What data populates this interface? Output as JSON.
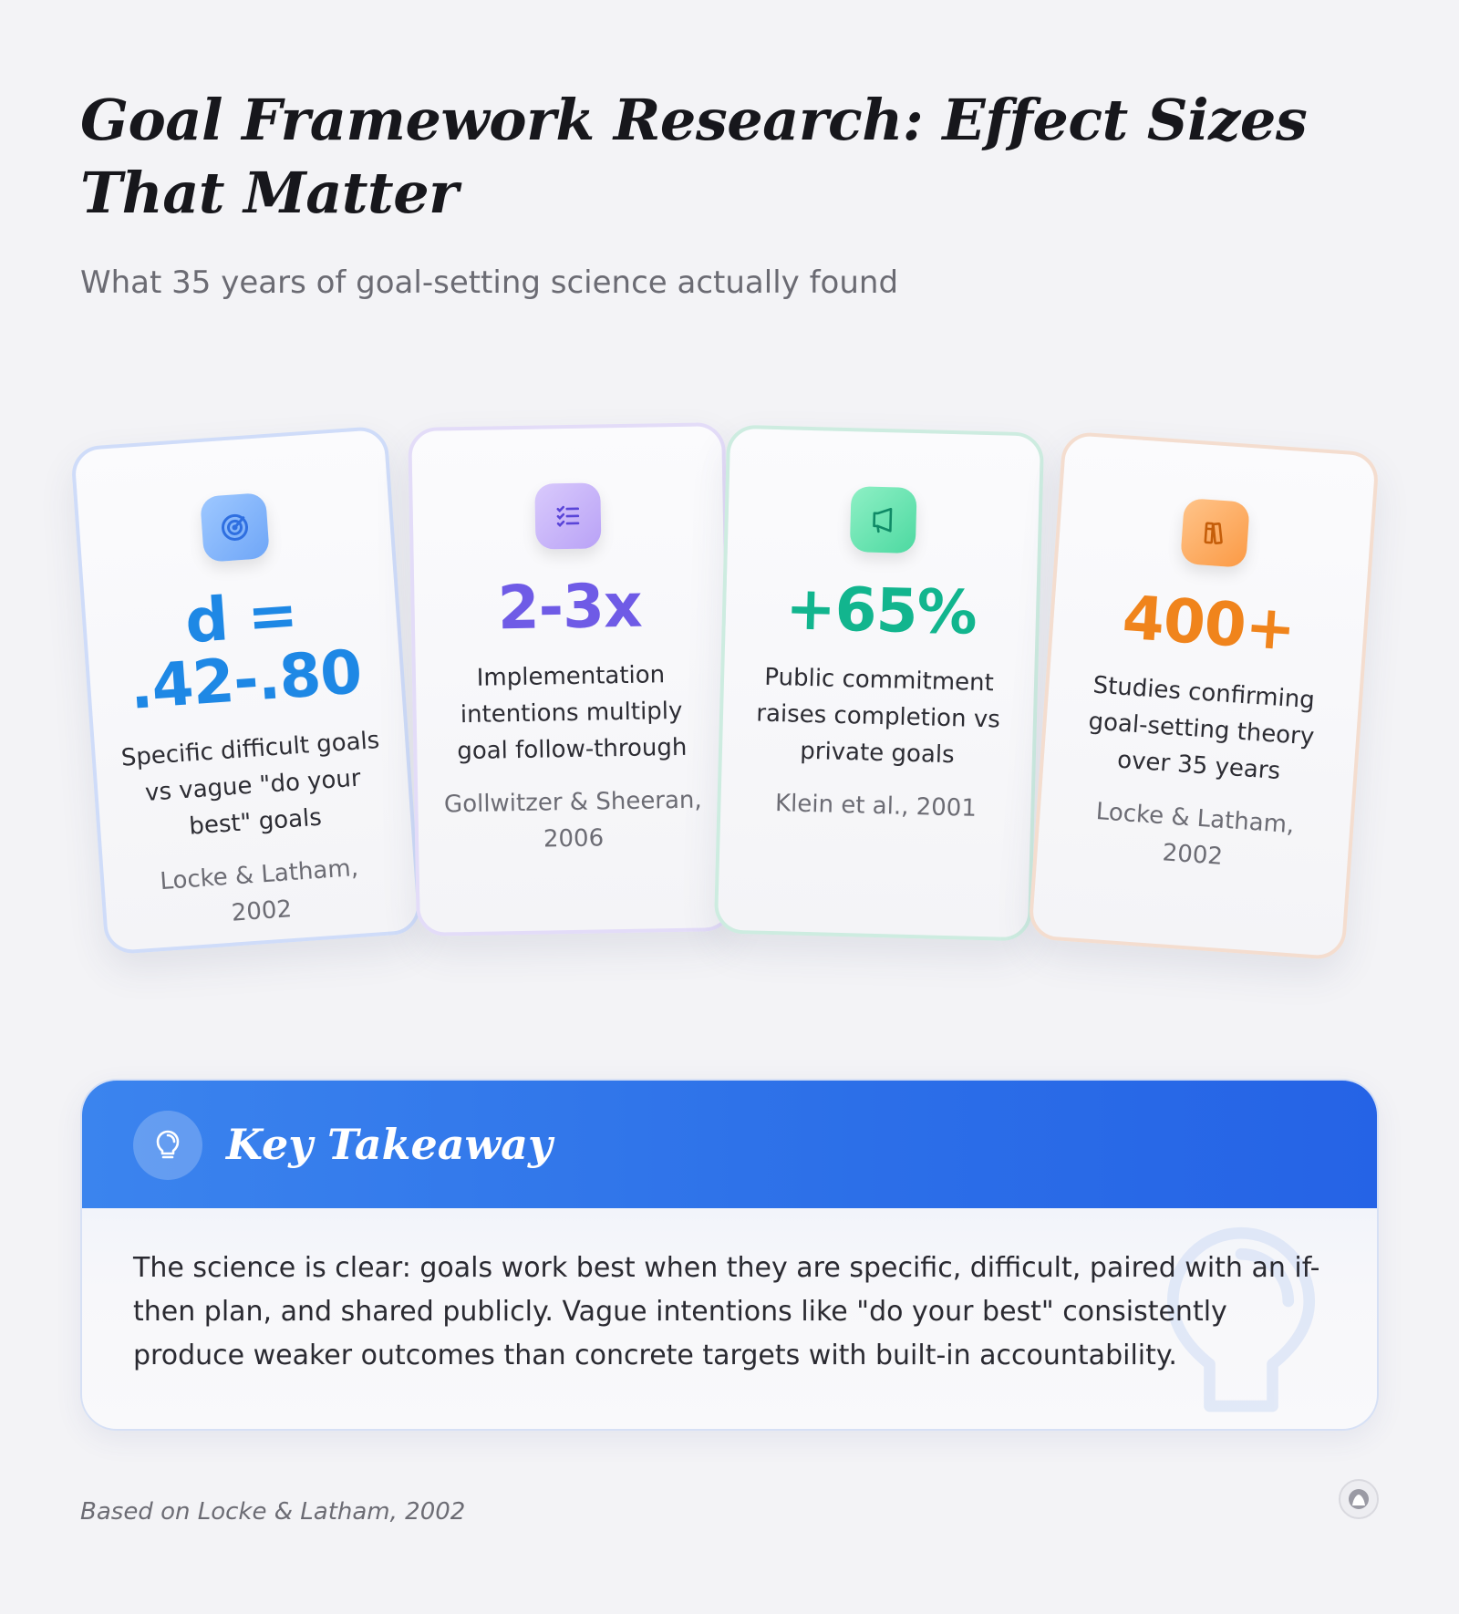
{
  "header": {
    "title": "Goal Framework Research: Effect Sizes That Matter",
    "subtitle": "What 35 years of goal-setting science actually found"
  },
  "cards": [
    {
      "icon": "target-icon",
      "stat": "d = .42-.80",
      "description": "Specific difficult goals vs vague \"do your best\" goals",
      "citation": "Locke & Latham, 2002",
      "color": "#1e88e5"
    },
    {
      "icon": "checklist-icon",
      "stat": "2-3x",
      "description": "Implementation intentions multiply goal follow-through",
      "citation": "Gollwitzer & Sheeran, 2006",
      "color": "#6f5be6"
    },
    {
      "icon": "megaphone-icon",
      "stat": "+65%",
      "description": "Public commitment raises completion vs private goals",
      "citation": "Klein et al., 2001",
      "color": "#12b58e"
    },
    {
      "icon": "books-icon",
      "stat": "400+",
      "description": "Studies confirming goal-setting theory over 35 years",
      "citation": "Locke & Latham, 2002",
      "color": "#f0841c"
    }
  ],
  "takeaway": {
    "icon": "lightbulb-icon",
    "title": "Key Takeaway",
    "body": "The science is clear: goals work best when they are specific, difficult, paired with an if-then plan, and shared publicly. Vague intentions like \"do your best\" consistently produce weaker outcomes than concrete targets with built-in accountability."
  },
  "footer": {
    "source": "Based on Locke & Latham, 2002"
  },
  "colors": {
    "accent": "#2c6fe8",
    "background": "#f3f3f6"
  }
}
